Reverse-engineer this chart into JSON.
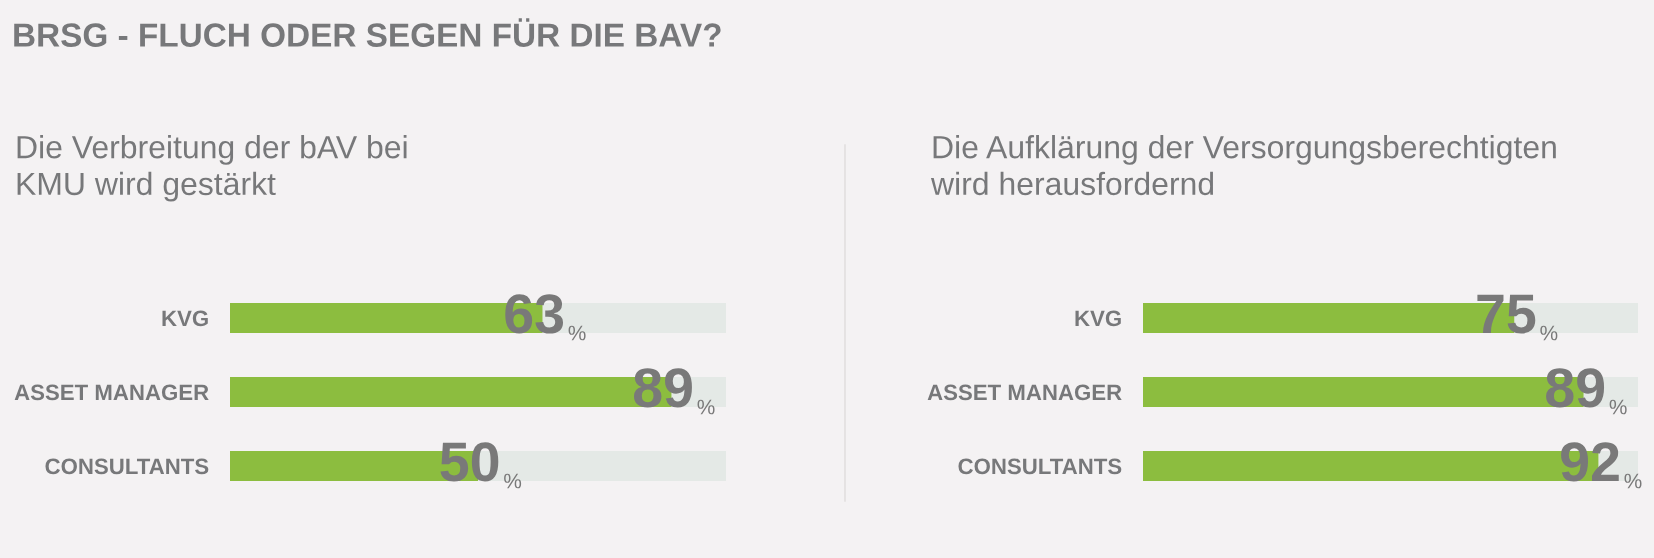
{
  "chart_data": [
    {
      "type": "bar",
      "orientation": "horizontal",
      "title": "BRSG - FLUCH ODER SEGEN FÜR DIE BAV?",
      "subtitle": "Die Verbreitung der bAV bei\nKMU wird gestärkt",
      "categories": [
        "KVG",
        "ASSET MANAGER",
        "CONSULTANTS"
      ],
      "series": [
        {
          "color": "#8cbd3f",
          "values": [
            63,
            89,
            50
          ],
          "value_labels": [
            "63%",
            "89%",
            "50%"
          ]
        }
      ],
      "xlim": [
        0,
        100
      ],
      "tick_labels": "y"
    },
    {
      "type": "bar",
      "orientation": "horizontal",
      "subtitle": "Die Aufklärung der Versorgungsberechtigten\nwird herausfordernd",
      "categories": [
        "KVG",
        "ASSET MANAGER",
        "CONSULTANTS"
      ],
      "series": [
        {
          "color": "#8cbd3f",
          "values": [
            75,
            89,
            92
          ],
          "value_labels": [
            "75%",
            "89%",
            "92%"
          ]
        }
      ],
      "xlim": [
        0,
        100
      ],
      "tick_labels": "y"
    }
  ]
}
